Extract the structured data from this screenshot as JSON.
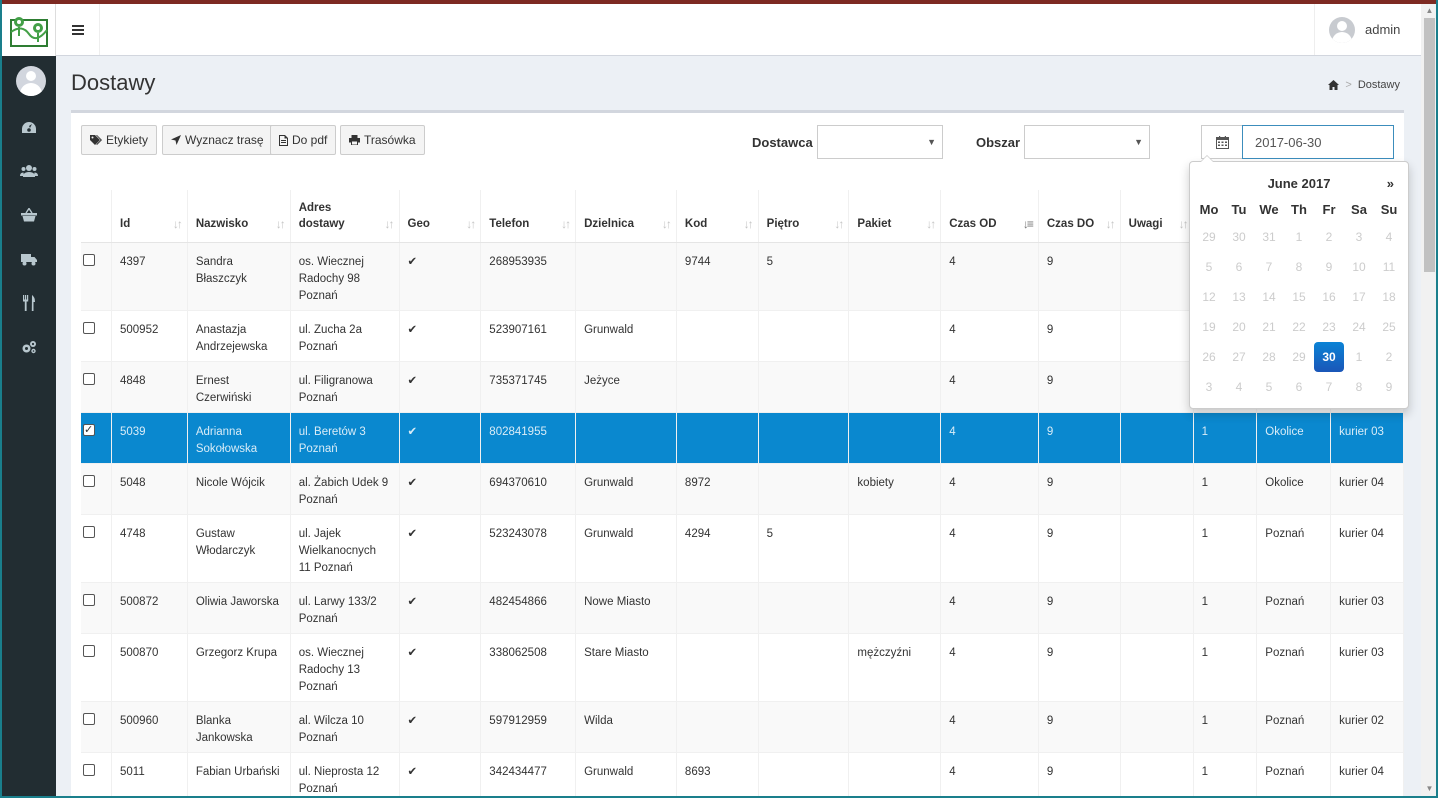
{
  "header": {
    "user_name": "admin"
  },
  "sidebar": {
    "items": [
      {
        "name": "dashboard-icon"
      },
      {
        "name": "users-icon"
      },
      {
        "name": "basket-icon"
      },
      {
        "name": "truck-icon"
      },
      {
        "name": "cutlery-icon"
      },
      {
        "name": "settings-icon"
      }
    ]
  },
  "page": {
    "title": "Dostawy",
    "breadcrumb_current": "Dostawy"
  },
  "toolbar": {
    "etykiety": "Etykiety",
    "wyznacz_trase": "Wyznacz trasę",
    "do_pdf": "Do pdf",
    "trasowka": "Trasówka"
  },
  "filters": {
    "dostawca_label": "Dostawca",
    "dostawca_value": "",
    "obszar_label": "Obszar",
    "obszar_value": "",
    "date_value": "2017-06-30"
  },
  "table": {
    "columns": [
      "Id",
      "Nazwisko",
      "Adres dostawy",
      "Geo",
      "Telefon",
      "Dzielnica",
      "Kod",
      "Piętro",
      "Pakiet",
      "Czas OD",
      "Czas DO",
      "Uwagi",
      "",
      "",
      ""
    ],
    "rows": [
      {
        "checked": false,
        "id": "4397",
        "nazwisko": "Sandra Błaszczyk",
        "adres": "os. Wiecznej Radochy 98 Poznań",
        "geo": "✔",
        "telefon": "268953935",
        "dzielnica": "",
        "kod": "9744",
        "pietro": "5",
        "pakiet": "",
        "od": "4",
        "do": "9",
        "uwagi": "",
        "c1": "",
        "c2": "",
        "c3": ""
      },
      {
        "checked": false,
        "id": "500952",
        "nazwisko": "Anastazja Andrzejewska",
        "adres": "ul. Zucha 2a Poznań",
        "geo": "✔",
        "telefon": "523907161",
        "dzielnica": "Grunwald",
        "kod": "",
        "pietro": "",
        "pakiet": "",
        "od": "4",
        "do": "9",
        "uwagi": "",
        "c1": "",
        "c2": "",
        "c3": ""
      },
      {
        "checked": false,
        "id": "4848",
        "nazwisko": "Ernest Czerwiński",
        "adres": "ul. Filigranowa Poznań",
        "geo": "✔",
        "telefon": "735371745",
        "dzielnica": "Jeżyce",
        "kod": "",
        "pietro": "",
        "pakiet": "",
        "od": "4",
        "do": "9",
        "uwagi": "",
        "c1": "",
        "c2": "",
        "c3": ""
      },
      {
        "checked": true,
        "id": "5039",
        "nazwisko": "Adrianna Sokołowska",
        "adres": "ul. Beretów 3 Poznań",
        "geo": "✔",
        "telefon": "802841955",
        "dzielnica": "",
        "kod": "",
        "pietro": "",
        "pakiet": "",
        "od": "4",
        "do": "9",
        "uwagi": "",
        "c1": "1",
        "c2": "Okolice",
        "c3": "kurier 03"
      },
      {
        "checked": false,
        "id": "5048",
        "nazwisko": "Nicole Wójcik",
        "adres": "al. Żabich Udek 9 Poznań",
        "geo": "✔",
        "telefon": "694370610",
        "dzielnica": "Grunwald",
        "kod": "8972",
        "pietro": "",
        "pakiet": "kobiety",
        "od": "4",
        "do": "9",
        "uwagi": "",
        "c1": "1",
        "c2": "Okolice",
        "c3": "kurier 04"
      },
      {
        "checked": false,
        "id": "4748",
        "nazwisko": "Gustaw Włodarczyk",
        "adres": "ul. Jajek Wielkanocnych 11 Poznań",
        "geo": "✔",
        "telefon": "523243078",
        "dzielnica": "Grunwald",
        "kod": "4294",
        "pietro": "5",
        "pakiet": "",
        "od": "4",
        "do": "9",
        "uwagi": "",
        "c1": "1",
        "c2": "Poznań",
        "c3": "kurier 04"
      },
      {
        "checked": false,
        "id": "500872",
        "nazwisko": "Oliwia Jaworska",
        "adres": "ul. Larwy 133/2 Poznań",
        "geo": "✔",
        "telefon": "482454866",
        "dzielnica": "Nowe Miasto",
        "kod": "",
        "pietro": "",
        "pakiet": "",
        "od": "4",
        "do": "9",
        "uwagi": "",
        "c1": "1",
        "c2": "Poznań",
        "c3": "kurier 03"
      },
      {
        "checked": false,
        "id": "500870",
        "nazwisko": "Grzegorz Krupa",
        "adres": "os. Wiecznej Radochy 13 Poznań",
        "geo": "✔",
        "telefon": "338062508",
        "dzielnica": "Stare Miasto",
        "kod": "",
        "pietro": "",
        "pakiet": "mężczyźni",
        "od": "4",
        "do": "9",
        "uwagi": "",
        "c1": "1",
        "c2": "Poznań",
        "c3": "kurier 03"
      },
      {
        "checked": false,
        "id": "500960",
        "nazwisko": "Blanka Jankowska",
        "adres": "al. Wilcza 10 Poznań",
        "geo": "✔",
        "telefon": "597912959",
        "dzielnica": "Wilda",
        "kod": "",
        "pietro": "",
        "pakiet": "",
        "od": "4",
        "do": "9",
        "uwagi": "",
        "c1": "1",
        "c2": "Poznań",
        "c3": "kurier 02"
      },
      {
        "checked": false,
        "id": "5011",
        "nazwisko": "Fabian Urbański",
        "adres": "ul. Nieprosta 12 Poznań",
        "geo": "✔",
        "telefon": "342434477",
        "dzielnica": "Grunwald",
        "kod": "8693",
        "pietro": "",
        "pakiet": "",
        "od": "4",
        "do": "9",
        "uwagi": "",
        "c1": "1",
        "c2": "Poznań",
        "c3": "kurier 04"
      }
    ]
  },
  "datepicker": {
    "title": "June 2017",
    "next": "»",
    "weekdays": [
      "Mo",
      "Tu",
      "We",
      "Th",
      "Fr",
      "Sa",
      "Su"
    ],
    "days": [
      [
        "29",
        "30",
        "31",
        "1",
        "2",
        "3",
        "4"
      ],
      [
        "5",
        "6",
        "7",
        "8",
        "9",
        "10",
        "11"
      ],
      [
        "12",
        "13",
        "14",
        "15",
        "16",
        "17",
        "18"
      ],
      [
        "19",
        "20",
        "21",
        "22",
        "23",
        "24",
        "25"
      ],
      [
        "26",
        "27",
        "28",
        "29",
        "30",
        "1",
        "2"
      ],
      [
        "3",
        "4",
        "5",
        "6",
        "7",
        "8",
        "9"
      ]
    ],
    "active_day": "30"
  },
  "colors": {
    "accent": "#0a88cf",
    "sidebar": "#222d32",
    "topline": "#7d2a22"
  }
}
